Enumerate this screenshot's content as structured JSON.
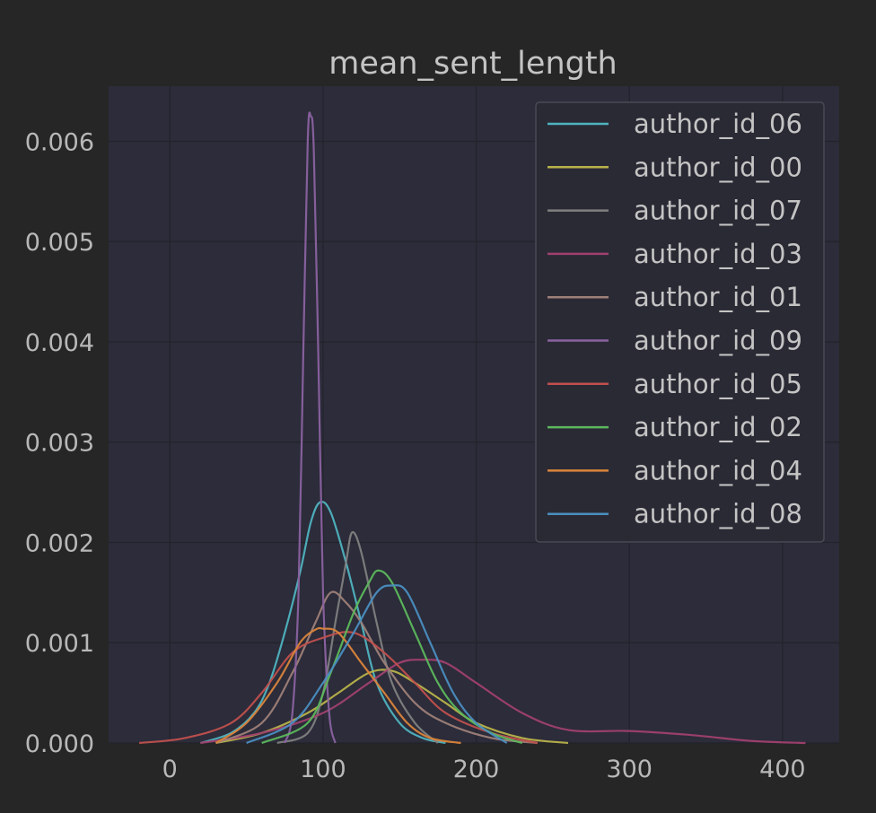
{
  "chart_data": {
    "type": "line",
    "title": "mean_sent_length",
    "xlabel": "",
    "ylabel": "",
    "xlim": [
      -40,
      437
    ],
    "ylim": [
      0,
      0.00655
    ],
    "xticks": [
      0,
      100,
      200,
      300,
      400
    ],
    "xtick_labels": [
      "0",
      "100",
      "200",
      "300",
      "400"
    ],
    "yticks": [
      0,
      0.001,
      0.002,
      0.003,
      0.004,
      0.005,
      0.006
    ],
    "ytick_labels": [
      "0.000",
      "0.001",
      "0.002",
      "0.003",
      "0.004",
      "0.005",
      "0.006"
    ],
    "grid": true,
    "legend_position": "top-right",
    "series": [
      {
        "name": "author_id_06",
        "color": "#4fb3bf",
        "x": [
          20,
          40,
          55,
          65,
          75,
          85,
          92,
          98,
          105,
          115,
          125,
          135,
          150,
          165,
          180
        ],
        "y": [
          0,
          0.0001,
          0.0003,
          0.0006,
          0.0011,
          0.0017,
          0.0022,
          0.0024,
          0.0023,
          0.0018,
          0.0012,
          0.0006,
          0.0002,
          5e-05,
          0
        ]
      },
      {
        "name": "author_id_00",
        "color": "#b8b24a",
        "x": [
          30,
          60,
          90,
          110,
          130,
          145,
          160,
          180,
          200,
          230,
          260
        ],
        "y": [
          0,
          0.0001,
          0.0003,
          0.0005,
          0.0007,
          0.00072,
          0.0006,
          0.0004,
          0.0002,
          5e-05,
          0
        ]
      },
      {
        "name": "author_id_07",
        "color": "#7f7f7f",
        "x": [
          70,
          90,
          100,
          108,
          115,
          119,
          125,
          135,
          145,
          160,
          175
        ],
        "y": [
          0,
          0.0001,
          0.0005,
          0.0012,
          0.0018,
          0.0021,
          0.0019,
          0.0012,
          0.0006,
          0.0002,
          0
        ]
      },
      {
        "name": "author_id_03",
        "color": "#a0406e",
        "x": [
          20,
          60,
          100,
          130,
          150,
          165,
          180,
          200,
          230,
          260,
          300,
          340,
          380,
          415
        ],
        "y": [
          0,
          0.0001,
          0.0003,
          0.0006,
          0.0008,
          0.00083,
          0.0008,
          0.0006,
          0.0003,
          0.00013,
          0.00012,
          8e-05,
          2e-05,
          0
        ]
      },
      {
        "name": "author_id_01",
        "color": "#9e8078",
        "x": [
          30,
          60,
          80,
          95,
          105,
          115,
          125,
          140,
          160,
          180,
          210,
          240
        ],
        "y": [
          0,
          0.0002,
          0.0007,
          0.0012,
          0.0015,
          0.0014,
          0.0012,
          0.0008,
          0.0004,
          0.0002,
          5e-05,
          0
        ]
      },
      {
        "name": "author_id_09",
        "color": "#8a62a0",
        "x": [
          75,
          80,
          84,
          87,
          90,
          92,
          94,
          97,
          100,
          104,
          108
        ],
        "y": [
          0,
          0.0003,
          0.0015,
          0.0038,
          0.006,
          0.00625,
          0.0059,
          0.0038,
          0.0015,
          0.0003,
          0
        ]
      },
      {
        "name": "author_id_05",
        "color": "#c0504d",
        "x": [
          -20,
          10,
          40,
          60,
          80,
          100,
          120,
          140,
          160,
          180,
          210,
          240
        ],
        "y": [
          0,
          5e-05,
          0.0002,
          0.0005,
          0.0009,
          0.00105,
          0.0011,
          0.0009,
          0.0006,
          0.0003,
          0.0001,
          0
        ]
      },
      {
        "name": "author_id_02",
        "color": "#5cb85c",
        "x": [
          60,
          90,
          105,
          120,
          130,
          136,
          145,
          160,
          175,
          190,
          210,
          230
        ],
        "y": [
          0,
          0.0002,
          0.0007,
          0.0013,
          0.0016,
          0.00172,
          0.0016,
          0.0011,
          0.0006,
          0.0003,
          0.0001,
          0
        ]
      },
      {
        "name": "author_id_04",
        "color": "#d9843b",
        "x": [
          30,
          50,
          70,
          85,
          95,
          100,
          110,
          125,
          140,
          155,
          170,
          190
        ],
        "y": [
          0,
          0.0002,
          0.0006,
          0.001,
          0.00113,
          0.00114,
          0.0011,
          0.0008,
          0.0005,
          0.0002,
          5e-05,
          0
        ]
      },
      {
        "name": "author_id_08",
        "color": "#4a8ec0",
        "x": [
          50,
          80,
          100,
          120,
          135,
          145,
          155,
          170,
          185,
          200,
          220
        ],
        "y": [
          0,
          0.0002,
          0.0006,
          0.0011,
          0.0015,
          0.00157,
          0.0015,
          0.001,
          0.0005,
          0.0002,
          0
        ]
      }
    ]
  }
}
